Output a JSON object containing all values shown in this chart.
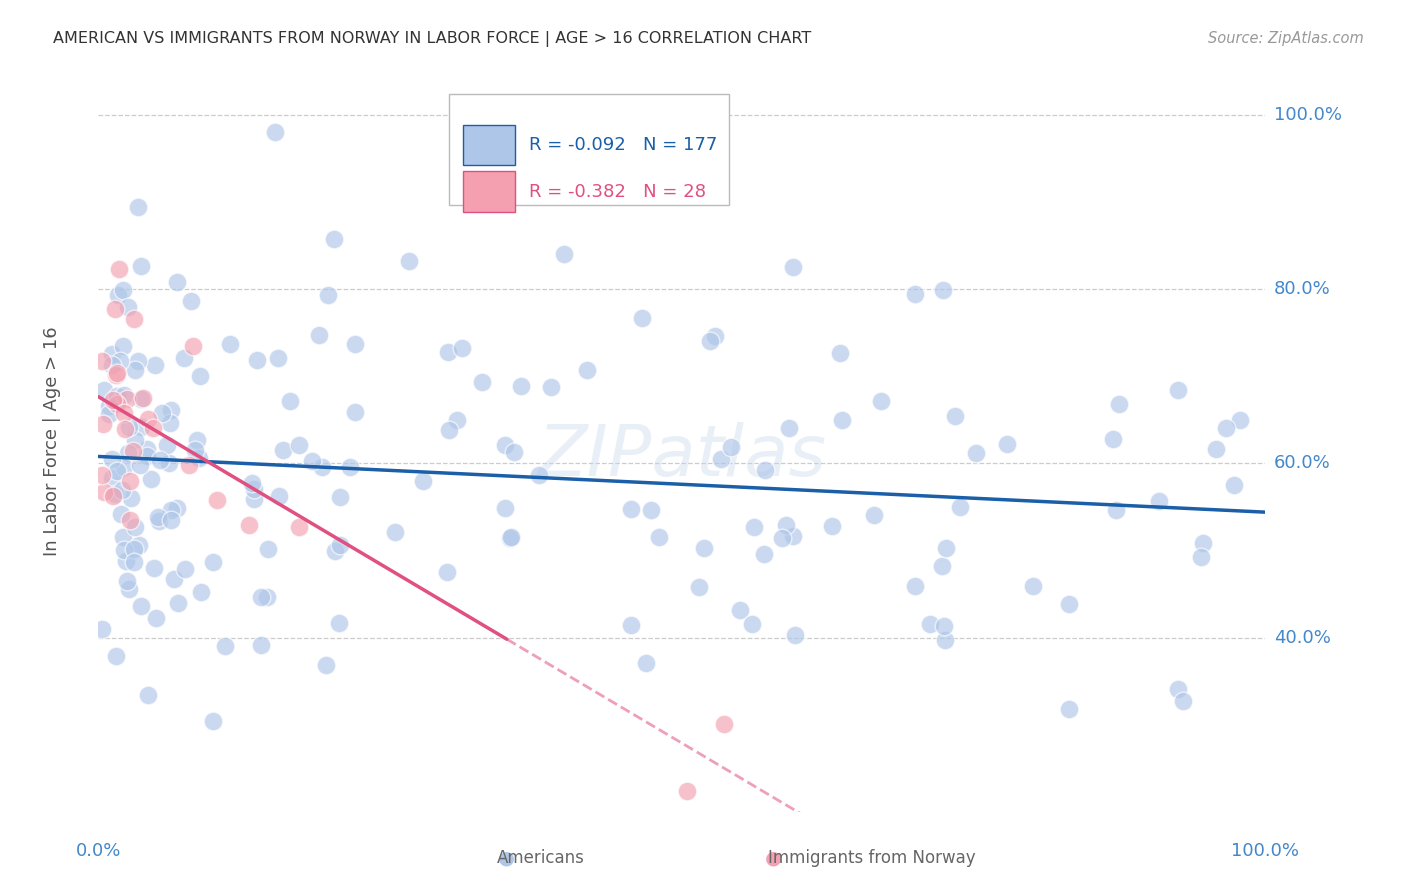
{
  "title": "AMERICAN VS IMMIGRANTS FROM NORWAY IN LABOR FORCE | AGE > 16 CORRELATION CHART",
  "source": "Source: ZipAtlas.com",
  "ylabel": "In Labor Force | Age > 16",
  "background_color": "#ffffff",
  "grid_color": "#cccccc",
  "watermark": "ZIPatlas",
  "legend_r_american": "-0.092",
  "legend_n_american": "177",
  "legend_r_norway": "-0.382",
  "legend_n_norway": "28",
  "american_color": "#aec6e8",
  "norway_color": "#f4a0b0",
  "american_line_color": "#1a5fa8",
  "norway_line_color": "#e05080",
  "axis_label_color": "#4488cc",
  "ytick_vals": [
    0.2,
    0.4,
    0.6,
    0.8,
    1.0
  ],
  "ytick_labels": [
    "",
    "40.0%",
    "60.0%",
    "80.0%",
    "100.0%"
  ],
  "american_seed": 123,
  "norway_seed": 456
}
